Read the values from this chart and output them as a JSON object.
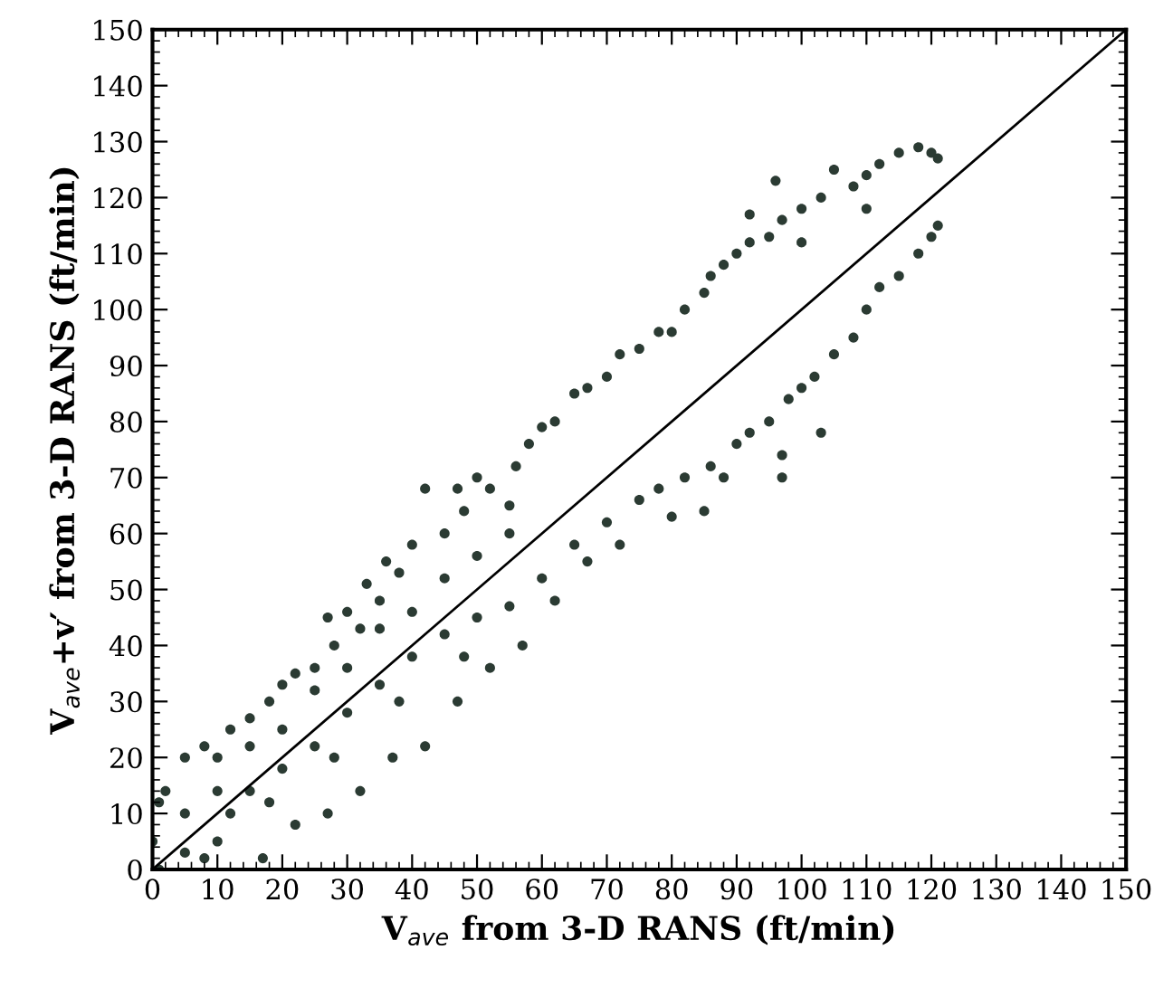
{
  "chart_data": {
    "type": "scatter",
    "xlabel": "V$_{ave}$ from 3-D RANS (ft/min)",
    "ylabel": "V$_{ave}$+v′ from 3-D RANS (ft/min)",
    "xlim": [
      0,
      150
    ],
    "ylim": [
      0,
      150
    ],
    "xticks": [
      0,
      10,
      20,
      30,
      40,
      50,
      60,
      70,
      80,
      90,
      100,
      110,
      120,
      130,
      140,
      150
    ],
    "yticks": [
      0,
      10,
      20,
      30,
      40,
      50,
      60,
      70,
      80,
      90,
      100,
      110,
      120,
      130,
      140,
      150
    ],
    "grid": false,
    "legend": false,
    "marker": "circle",
    "series": [
      {
        "color": "#2b3b33",
        "x": [
          0,
          1,
          2,
          5,
          8,
          10,
          12,
          15,
          18,
          20,
          22,
          25,
          27,
          28,
          30,
          32,
          33,
          35,
          36,
          38,
          40,
          42,
          45,
          47,
          48,
          50,
          52,
          55,
          56,
          58,
          60,
          62,
          65,
          67,
          70,
          72,
          75,
          78,
          80,
          82,
          85,
          86,
          88,
          90,
          92,
          95,
          97,
          100,
          103,
          105,
          108,
          110,
          112,
          115,
          118,
          120,
          121,
          5,
          15,
          25,
          35,
          45,
          55,
          100,
          110,
          96,
          92,
          10,
          20,
          30,
          40,
          50
        ],
        "values": [
          5,
          12,
          14,
          20,
          22,
          20,
          25,
          27,
          30,
          33,
          35,
          36,
          45,
          40,
          46,
          43,
          51,
          48,
          55,
          53,
          58,
          68,
          60,
          68,
          64,
          70,
          68,
          65,
          72,
          76,
          79,
          80,
          85,
          86,
          88,
          92,
          93,
          96,
          96,
          100,
          103,
          106,
          108,
          110,
          112,
          113,
          116,
          118,
          120,
          125,
          122,
          124,
          126,
          128,
          129,
          128,
          127,
          10,
          22,
          32,
          43,
          52,
          60,
          112,
          118,
          123,
          117,
          14,
          25,
          36,
          46,
          56
        ]
      },
      {
        "color": "#2b3b33",
        "x": [
          1,
          5,
          10,
          12,
          15,
          17,
          20,
          22,
          25,
          27,
          30,
          32,
          35,
          37,
          40,
          42,
          45,
          47,
          50,
          52,
          55,
          57,
          60,
          62,
          65,
          67,
          70,
          72,
          75,
          78,
          80,
          82,
          85,
          86,
          88,
          90,
          92,
          95,
          97,
          98,
          100,
          102,
          103,
          105,
          108,
          110,
          112,
          115,
          118,
          120,
          121,
          97,
          8,
          18,
          28,
          38,
          48
        ],
        "values": [
          0,
          3,
          5,
          10,
          14,
          2,
          18,
          8,
          22,
          10,
          28,
          14,
          33,
          20,
          38,
          22,
          42,
          30,
          45,
          36,
          47,
          40,
          52,
          48,
          58,
          55,
          62,
          58,
          66,
          68,
          63,
          70,
          64,
          72,
          70,
          76,
          78,
          80,
          74,
          84,
          86,
          88,
          78,
          92,
          95,
          100,
          104,
          106,
          110,
          113,
          115,
          70,
          2,
          12,
          20,
          30,
          38
        ]
      },
      {
        "type": "line",
        "color": "#000000",
        "marker": "none",
        "line_style": "solid",
        "x": [
          0,
          150
        ],
        "values": [
          0,
          150
        ]
      }
    ]
  }
}
